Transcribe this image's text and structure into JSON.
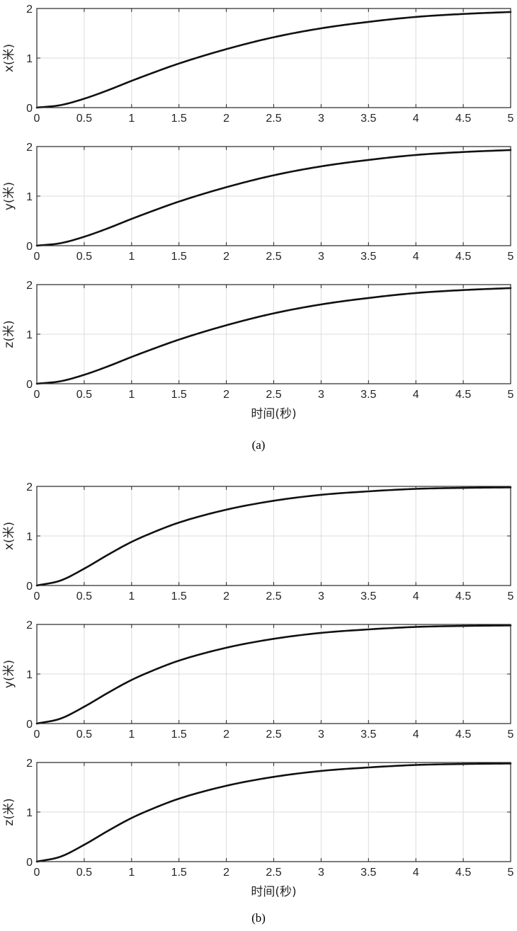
{
  "chart_data": [
    {
      "type": "line",
      "ylabel": "x(米)",
      "xlabel": "",
      "xlim": [
        0,
        5
      ],
      "ylim": [
        0,
        2
      ],
      "xticks": [
        "0",
        "0.5",
        "1",
        "1.5",
        "2",
        "2.5",
        "3",
        "3.5",
        "4",
        "4.5",
        "5"
      ],
      "yticks": [
        "0",
        "1",
        "2"
      ],
      "grid": true,
      "series": [
        {
          "x": [
            0,
            0.25,
            0.5,
            0.75,
            1,
            1.25,
            1.5,
            2,
            2.5,
            3,
            3.5,
            4,
            4.5,
            5
          ],
          "y": [
            0,
            0.05,
            0.18,
            0.35,
            0.54,
            0.72,
            0.89,
            1.18,
            1.42,
            1.6,
            1.73,
            1.83,
            1.89,
            1.93
          ]
        }
      ]
    },
    {
      "type": "line",
      "ylabel": "y(米)",
      "xlabel": "",
      "xlim": [
        0,
        5
      ],
      "ylim": [
        0,
        2
      ],
      "xticks": [
        "0",
        "0.5",
        "1",
        "1.5",
        "2",
        "2.5",
        "3",
        "3.5",
        "4",
        "4.5",
        "5"
      ],
      "yticks": [
        "0",
        "1",
        "2"
      ],
      "grid": true,
      "series": [
        {
          "x": [
            0,
            0.25,
            0.5,
            0.75,
            1,
            1.25,
            1.5,
            2,
            2.5,
            3,
            3.5,
            4,
            4.5,
            5
          ],
          "y": [
            0,
            0.05,
            0.18,
            0.35,
            0.54,
            0.72,
            0.89,
            1.18,
            1.42,
            1.6,
            1.73,
            1.83,
            1.89,
            1.93
          ]
        }
      ]
    },
    {
      "type": "line",
      "ylabel": "z(米)",
      "xlabel": "时间(秒)",
      "xlim": [
        0,
        5
      ],
      "ylim": [
        0,
        2
      ],
      "xticks": [
        "0",
        "0.5",
        "1",
        "1.5",
        "2",
        "2.5",
        "3",
        "3.5",
        "4",
        "4.5",
        "5"
      ],
      "yticks": [
        "0",
        "1",
        "2"
      ],
      "grid": true,
      "series": [
        {
          "x": [
            0,
            0.25,
            0.5,
            0.75,
            1,
            1.25,
            1.5,
            2,
            2.5,
            3,
            3.5,
            4,
            4.5,
            5
          ],
          "y": [
            0,
            0.05,
            0.18,
            0.35,
            0.54,
            0.72,
            0.89,
            1.18,
            1.42,
            1.6,
            1.73,
            1.83,
            1.89,
            1.93
          ]
        }
      ]
    },
    {
      "type": "line",
      "ylabel": "x(米)",
      "xlabel": "",
      "xlim": [
        0,
        5
      ],
      "ylim": [
        0,
        2
      ],
      "xticks": [
        "0",
        "0.5",
        "1",
        "1.5",
        "2",
        "2.5",
        "3",
        "3.5",
        "4",
        "4.5",
        "5"
      ],
      "yticks": [
        "0",
        "1",
        "2"
      ],
      "grid": true,
      "series": [
        {
          "x": [
            0,
            0.25,
            0.5,
            0.75,
            1,
            1.25,
            1.5,
            2,
            2.5,
            3,
            3.5,
            4,
            4.5,
            5
          ],
          "y": [
            0,
            0.1,
            0.34,
            0.62,
            0.88,
            1.09,
            1.27,
            1.53,
            1.71,
            1.83,
            1.9,
            1.95,
            1.97,
            1.98
          ]
        }
      ]
    },
    {
      "type": "line",
      "ylabel": "y(米)",
      "xlabel": "",
      "xlim": [
        0,
        5
      ],
      "ylim": [
        0,
        2
      ],
      "xticks": [
        "0",
        "0.5",
        "1",
        "1.5",
        "2",
        "2.5",
        "3",
        "3.5",
        "4",
        "4.5",
        "5"
      ],
      "yticks": [
        "0",
        "1",
        "2"
      ],
      "grid": true,
      "series": [
        {
          "x": [
            0,
            0.25,
            0.5,
            0.75,
            1,
            1.25,
            1.5,
            2,
            2.5,
            3,
            3.5,
            4,
            4.5,
            5
          ],
          "y": [
            0,
            0.1,
            0.34,
            0.62,
            0.88,
            1.09,
            1.27,
            1.53,
            1.71,
            1.83,
            1.9,
            1.95,
            1.97,
            1.98
          ]
        }
      ]
    },
    {
      "type": "line",
      "ylabel": "z(米)",
      "xlabel": "时间(秒)",
      "xlim": [
        0,
        5
      ],
      "ylim": [
        0,
        2
      ],
      "xticks": [
        "0",
        "0.5",
        "1",
        "1.5",
        "2",
        "2.5",
        "3",
        "3.5",
        "4",
        "4.5",
        "5"
      ],
      "yticks": [
        "0",
        "1",
        "2"
      ],
      "grid": true,
      "series": [
        {
          "x": [
            0,
            0.25,
            0.5,
            0.75,
            1,
            1.25,
            1.5,
            2,
            2.5,
            3,
            3.5,
            4,
            4.5,
            5
          ],
          "y": [
            0,
            0.1,
            0.34,
            0.62,
            0.88,
            1.09,
            1.27,
            1.53,
            1.71,
            1.83,
            1.9,
            1.95,
            1.97,
            1.98
          ]
        }
      ]
    }
  ],
  "captions": [
    "(a)",
    "(b)"
  ],
  "colors": {
    "line": "#111111",
    "grid": "#dcdcdc",
    "axis": "#262626"
  }
}
